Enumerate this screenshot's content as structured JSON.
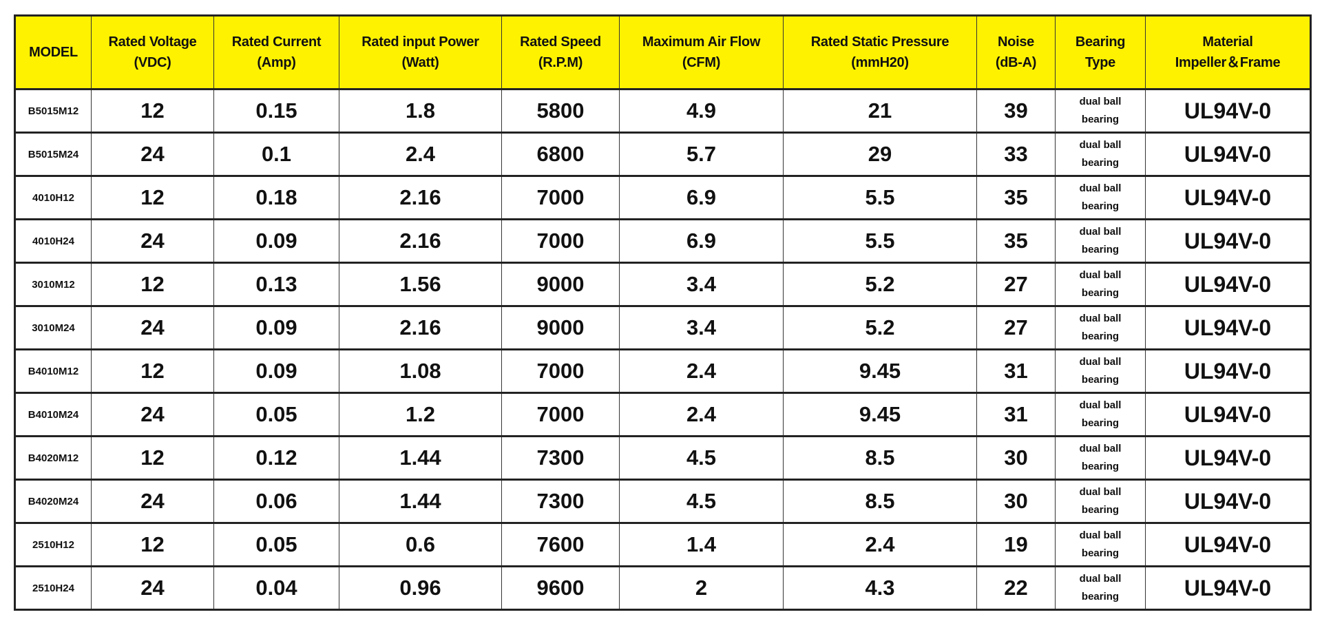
{
  "table": {
    "headers": [
      [
        "MODEL",
        ""
      ],
      [
        "Rated Voltage",
        "(VDC)"
      ],
      [
        "Rated Current",
        "(Amp)"
      ],
      [
        "Rated input Power",
        "(Watt)"
      ],
      [
        "Rated Speed",
        "(R.P.M)"
      ],
      [
        "Maximum Air Flow",
        "(CFM)"
      ],
      [
        "Rated Static Pressure",
        "(mmH20)"
      ],
      [
        "Noise",
        "(dB-A)"
      ],
      [
        "Bearing",
        "Type"
      ],
      [
        "Material",
        "Impeller＆Frame"
      ]
    ],
    "bearing_line1": "dual ball",
    "bearing_line2": "bearing",
    "rows": [
      [
        "B5015M12",
        "12",
        "0.15",
        "1.8",
        "5800",
        "4.9",
        "21",
        "39",
        "UL94V-0"
      ],
      [
        "B5015M24",
        "24",
        "0.1",
        "2.4",
        "6800",
        "5.7",
        "29",
        "33",
        "UL94V-0"
      ],
      [
        "4010H12",
        "12",
        "0.18",
        "2.16",
        "7000",
        "6.9",
        "5.5",
        "35",
        "UL94V-0"
      ],
      [
        "4010H24",
        "24",
        "0.09",
        "2.16",
        "7000",
        "6.9",
        "5.5",
        "35",
        "UL94V-0"
      ],
      [
        "3010M12",
        "12",
        "0.13",
        "1.56",
        "9000",
        "3.4",
        "5.2",
        "27",
        "UL94V-0"
      ],
      [
        "3010M24",
        "24",
        "0.09",
        "2.16",
        "9000",
        "3.4",
        "5.2",
        "27",
        "UL94V-0"
      ],
      [
        "B4010M12",
        "12",
        "0.09",
        "1.08",
        "7000",
        "2.4",
        "9.45",
        "31",
        "UL94V-0"
      ],
      [
        "B4010M24",
        "24",
        "0.05",
        "1.2",
        "7000",
        "2.4",
        "9.45",
        "31",
        "UL94V-0"
      ],
      [
        "B4020M12",
        "12",
        "0.12",
        "1.44",
        "7300",
        "4.5",
        "8.5",
        "30",
        "UL94V-0"
      ],
      [
        "B4020M24",
        "24",
        "0.06",
        "1.44",
        "7300",
        "4.5",
        "8.5",
        "30",
        "UL94V-0"
      ],
      [
        "2510H12",
        "12",
        "0.05",
        "0.6",
        "7600",
        "1.4",
        "2.4",
        "19",
        "UL94V-0"
      ],
      [
        "2510H24",
        "24",
        "0.04",
        "0.96",
        "9600",
        "2",
        "4.3",
        "22",
        "UL94V-0"
      ]
    ]
  },
  "colors": {
    "header_bg": "#fff200",
    "border": "#222222"
  }
}
